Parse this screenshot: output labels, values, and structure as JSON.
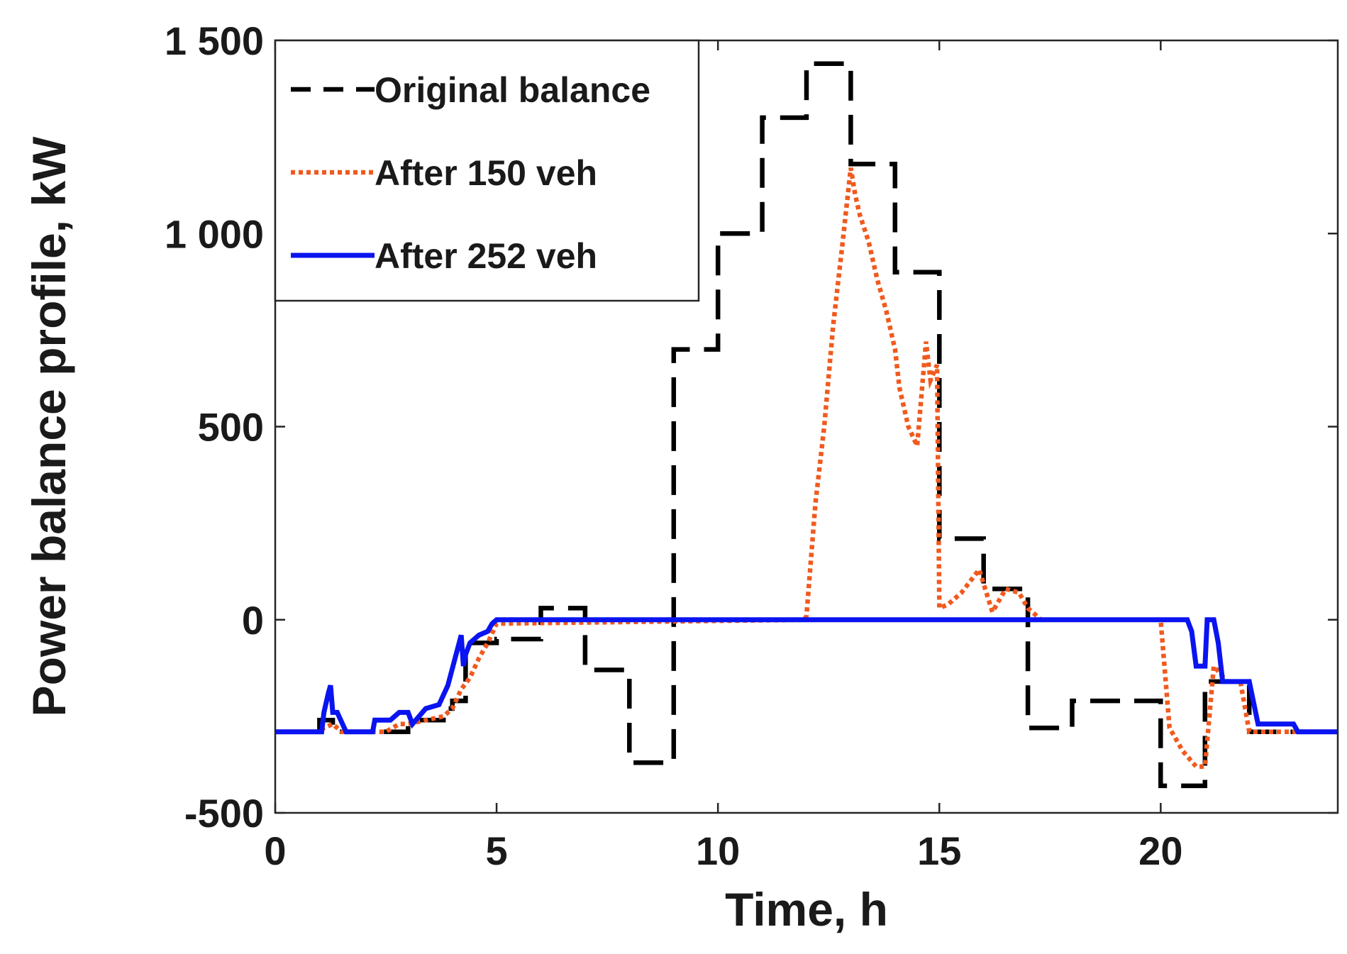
{
  "chart_data": {
    "type": "line",
    "title": "",
    "xlabel": "Time, h",
    "ylabel": "Power balance profile, kW",
    "xlim": [
      0,
      24
    ],
    "ylim": [
      -500,
      1500
    ],
    "xticks": [
      0,
      5,
      10,
      15,
      20
    ],
    "xtick_labels": [
      "0",
      "5",
      "10",
      "15",
      "20"
    ],
    "yticks": [
      -500,
      0,
      500,
      1000,
      1500
    ],
    "ytick_labels": [
      "-500",
      "0",
      "500",
      "1 000",
      "1 500"
    ],
    "grid": false,
    "legend_position": "top-left",
    "series": [
      {
        "name": "Original balance",
        "style": "dashed",
        "color": "#000000",
        "x": [
          0,
          1,
          1,
          1.3,
          1.3,
          3,
          3,
          3.8,
          3.8,
          4,
          4,
          4.3,
          4.3,
          5,
          5,
          6,
          6,
          7,
          7,
          8,
          8,
          9,
          9,
          10,
          10,
          11,
          11,
          12,
          12,
          13,
          13,
          14,
          14,
          15,
          15,
          16,
          16,
          17,
          17,
          18,
          18,
          20,
          20,
          21,
          21,
          22,
          22,
          23,
          23,
          24
        ],
        "y": [
          -290,
          -290,
          -260,
          -260,
          -290,
          -290,
          -260,
          -260,
          -230,
          -230,
          -210,
          -210,
          -60,
          -60,
          -50,
          -50,
          30,
          30,
          -130,
          -130,
          -370,
          -370,
          700,
          700,
          1000,
          1000,
          1300,
          1300,
          1440,
          1440,
          1180,
          1180,
          900,
          900,
          210,
          210,
          80,
          80,
          -280,
          -280,
          -210,
          -210,
          -430,
          -430,
          -160,
          -160,
          -290,
          -290,
          -290,
          -290
        ]
      },
      {
        "name": "After 150 veh",
        "style": "dotted",
        "color": "#f05a1e",
        "x": [
          0,
          1,
          1.1,
          1.3,
          1.5,
          2.5,
          2.8,
          3,
          3.8,
          4,
          4.2,
          4.4,
          4.6,
          4.8,
          5,
          11.95,
          12,
          12.2,
          12.4,
          12.6,
          12.8,
          13,
          13.1,
          13.2,
          13.4,
          13.6,
          13.8,
          14,
          14.1,
          14.3,
          14.5,
          14.7,
          14.8,
          14.95,
          15,
          15.2,
          15.5,
          15.9,
          16.2,
          16.5,
          16.8,
          17,
          17.3,
          20,
          20.2,
          20.5,
          20.8,
          21,
          21.2,
          21.5,
          21.8,
          22,
          23,
          24
        ],
        "y": [
          -290,
          -290,
          -280,
          -270,
          -290,
          -290,
          -270,
          -270,
          -250,
          -230,
          -180,
          -150,
          -100,
          -60,
          -10,
          0,
          10,
          300,
          500,
          760,
          960,
          1170,
          1100,
          1050,
          980,
          880,
          800,
          700,
          600,
          500,
          450,
          720,
          620,
          660,
          30,
          40,
          70,
          130,
          20,
          80,
          70,
          30,
          0,
          0,
          -280,
          -340,
          -380,
          -380,
          -120,
          -160,
          -160,
          -290,
          -290,
          -290
        ]
      },
      {
        "name": "After 252 veh",
        "style": "solid",
        "color": "#0a14f0",
        "x": [
          0,
          1.05,
          1.1,
          1.2,
          1.25,
          1.3,
          1.4,
          1.6,
          2.2,
          2.25,
          2.6,
          2.8,
          3,
          3.1,
          3.4,
          3.7,
          3.9,
          4.2,
          4.25,
          4.3,
          4.4,
          4.6,
          4.8,
          4.9,
          5,
          20.6,
          20.7,
          20.8,
          21,
          21.05,
          21.2,
          21.3,
          21.4,
          21.5,
          21.7,
          22,
          22.2,
          23,
          23.1,
          24
        ],
        "y": [
          -290,
          -290,
          -240,
          -190,
          -170,
          -240,
          -240,
          -290,
          -290,
          -260,
          -260,
          -240,
          -240,
          -270,
          -230,
          -220,
          -170,
          -40,
          -120,
          -90,
          -60,
          -40,
          -30,
          -10,
          0,
          0,
          -30,
          -120,
          -120,
          0,
          0,
          -60,
          -160,
          -160,
          -160,
          -160,
          -270,
          -270,
          -290,
          -290
        ]
      }
    ]
  }
}
